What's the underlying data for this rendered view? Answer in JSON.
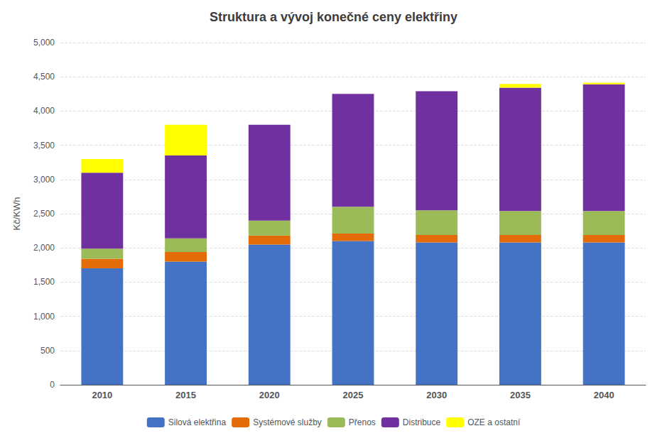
{
  "chart_data": {
    "type": "bar",
    "title": "Struktura a vývoj konečné ceny elektřiny",
    "ylabel": "Kč/KWh",
    "categories": [
      "2010",
      "2015",
      "2020",
      "2025",
      "2030",
      "2035",
      "2040"
    ],
    "series": [
      {
        "name": "Silová elektřina",
        "color": "#4472C4",
        "values": [
          1700,
          1800,
          2050,
          2100,
          2080,
          2080,
          2080
        ]
      },
      {
        "name": "Systémové služby",
        "color": "#E36C09",
        "values": [
          140,
          140,
          130,
          110,
          110,
          110,
          110
        ]
      },
      {
        "name": "Přenos",
        "color": "#9BBB59",
        "values": [
          150,
          200,
          220,
          390,
          360,
          350,
          350
        ]
      },
      {
        "name": "Distribuce",
        "color": "#7030A0",
        "values": [
          1110,
          1210,
          1400,
          1650,
          1740,
          1800,
          1850
        ]
      },
      {
        "name": "OZE a ostatní",
        "color": "#FFFF00",
        "values": [
          200,
          450,
          0,
          0,
          0,
          55,
          25
        ]
      }
    ],
    "ylim": [
      0,
      5000
    ],
    "yticks": [
      0,
      500,
      1000,
      1500,
      2000,
      2500,
      3000,
      3500,
      4000,
      4500,
      5000
    ],
    "grid": true,
    "stacked": true,
    "legend": "bottom"
  }
}
